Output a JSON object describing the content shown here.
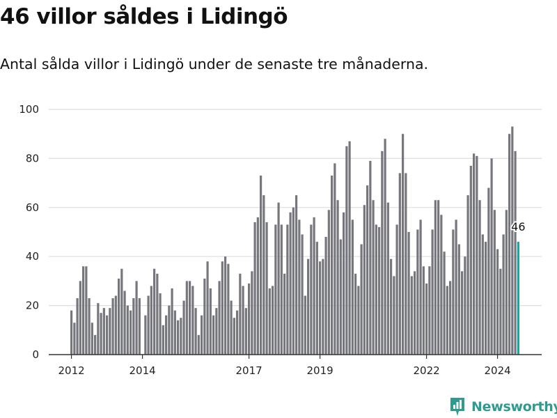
{
  "header": {
    "title": "46 villor såldes i Lidingö",
    "subtitle": "Antal sålda villor i Lidingö under de senaste tre månaderna."
  },
  "brand": {
    "name": "Newsworthy",
    "color": "#2f9a8f"
  },
  "colors": {
    "bar": "#76767d",
    "highlight": "#1aa39a",
    "grid": "#dedede",
    "axis": "#333333"
  },
  "chart_data": {
    "type": "bar",
    "title": "46 villor såldes i Lidingö",
    "subtitle": "Antal sålda villor i Lidingö under de senaste tre månaderna.",
    "xlabel": "",
    "ylabel": "",
    "ylim": [
      0,
      100
    ],
    "yticks": [
      0,
      20,
      40,
      60,
      80,
      100
    ],
    "grid": true,
    "x_start": {
      "year": 2012,
      "month": 1
    },
    "xticks": [
      {
        "label": "2012",
        "year": 2012
      },
      {
        "label": "2014",
        "year": 2014
      },
      {
        "label": "2017",
        "year": 2017
      },
      {
        "label": "2019",
        "year": 2019
      },
      {
        "label": "2022",
        "year": 2022
      },
      {
        "label": "2024",
        "year": 2024
      }
    ],
    "values": [
      18,
      13,
      23,
      30,
      36,
      36,
      23,
      13,
      8,
      21,
      17,
      19,
      16,
      19,
      23,
      24,
      31,
      35,
      26,
      20,
      18,
      23,
      30,
      23,
      0,
      16,
      24,
      28,
      35,
      33,
      25,
      12,
      16,
      20,
      27,
      18,
      14,
      15,
      22,
      30,
      30,
      28,
      19,
      8,
      16,
      31,
      38,
      27,
      16,
      19,
      30,
      38,
      40,
      37,
      22,
      15,
      18,
      33,
      28,
      19,
      29,
      34,
      54,
      56,
      73,
      65,
      54,
      27,
      28,
      53,
      62,
      53,
      33,
      53,
      58,
      60,
      65,
      55,
      49,
      24,
      39,
      53,
      56,
      46,
      38,
      39,
      48,
      59,
      73,
      78,
      63,
      47,
      58,
      85,
      87,
      55,
      33,
      28,
      45,
      61,
      69,
      79,
      63,
      53,
      52,
      83,
      88,
      62,
      39,
      32,
      53,
      74,
      90,
      74,
      50,
      32,
      34,
      51,
      55,
      36,
      29,
      36,
      51,
      63,
      63,
      57,
      42,
      28,
      30,
      51,
      55,
      45,
      34,
      40,
      65,
      77,
      82,
      81,
      63,
      49,
      46,
      68,
      80,
      59,
      43,
      35,
      49,
      59,
      90,
      93,
      83,
      46
    ],
    "highlight_index": 151,
    "highlight_label": "46"
  }
}
